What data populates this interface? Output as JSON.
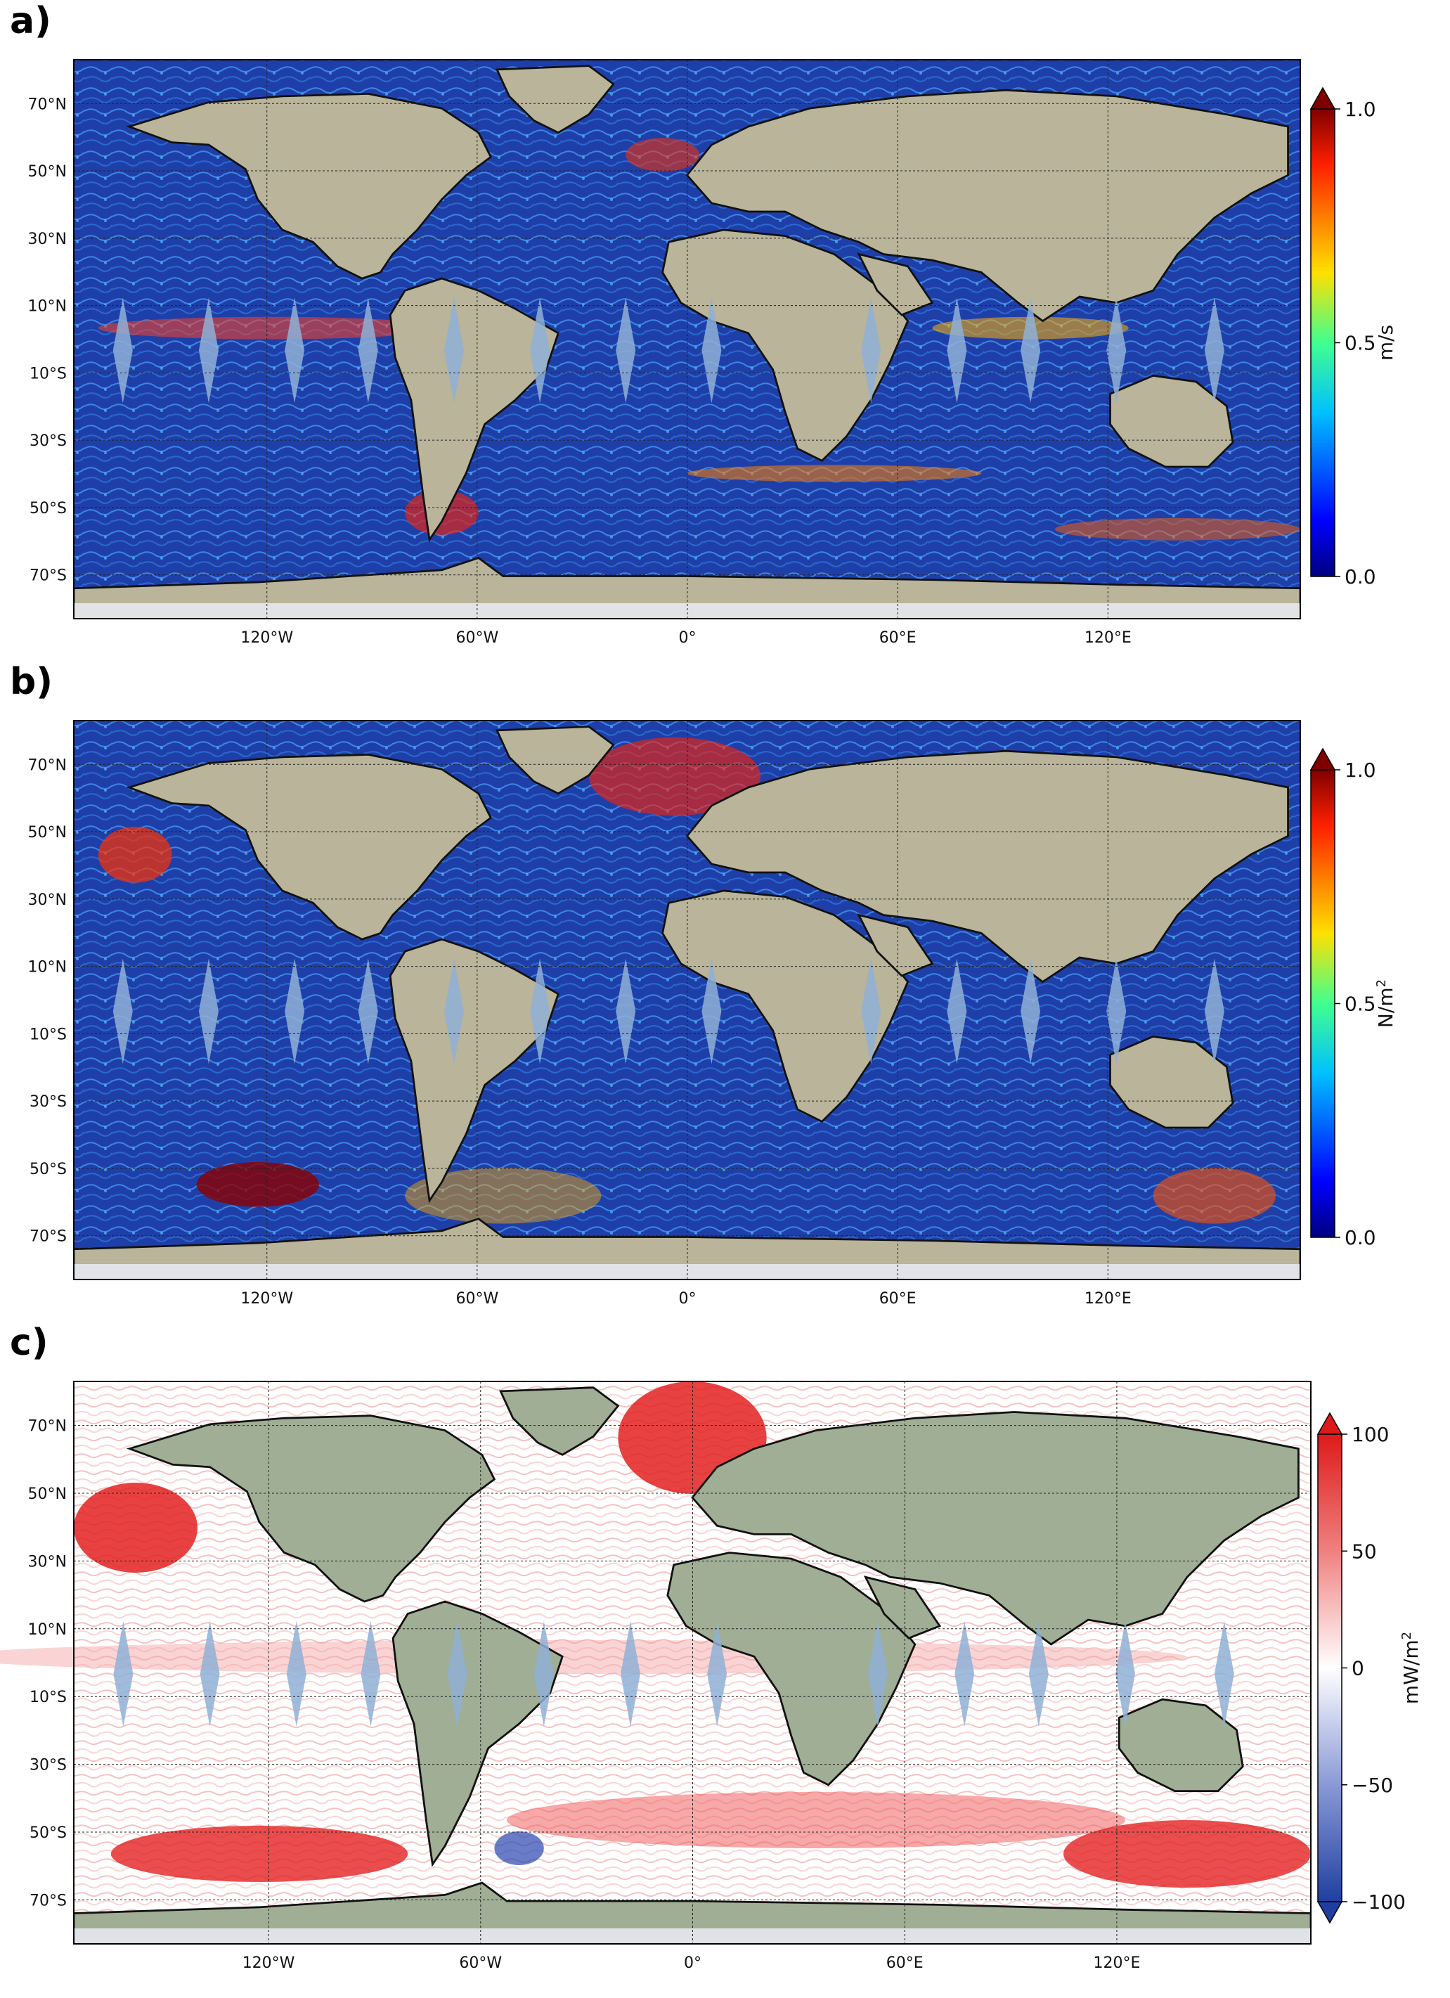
{
  "panels": [
    {
      "letter": "a)",
      "colorbar": {
        "label": "m/s",
        "ticks": [
          "0.0",
          "0.5",
          "1.0"
        ],
        "range": [
          0,
          1
        ],
        "colormap": "jet",
        "extend": "max"
      }
    },
    {
      "letter": "b)",
      "colorbar": {
        "label": "N/m",
        "label_sup": "2",
        "ticks": [
          "0.0",
          "0.5",
          "1.0"
        ],
        "range": [
          0,
          1
        ],
        "colormap": "jet",
        "extend": "max"
      }
    },
    {
      "letter": "c)",
      "colorbar": {
        "label": "mW/m",
        "label_sup": "2",
        "ticks": [
          "−100",
          "−50",
          "0",
          "50",
          "100"
        ],
        "range": [
          -100,
          100
        ],
        "colormap": "bwr",
        "extend": "both"
      }
    }
  ],
  "lat_ticks": [
    "70°N",
    "50°N",
    "30°N",
    "10°N",
    "10°S",
    "30°S",
    "50°S",
    "70°S"
  ],
  "lon_ticks": [
    "120°W",
    "60°W",
    "0°",
    "60°E",
    "120°E"
  ],
  "colors": {
    "ocean_a": "#1f3fa8",
    "ocean_b": "#1b47b8",
    "ocean_c": "#ffffff",
    "land": "#b9b49a",
    "ice": "#e6e9ef",
    "gap": "#8fb0d6"
  }
}
